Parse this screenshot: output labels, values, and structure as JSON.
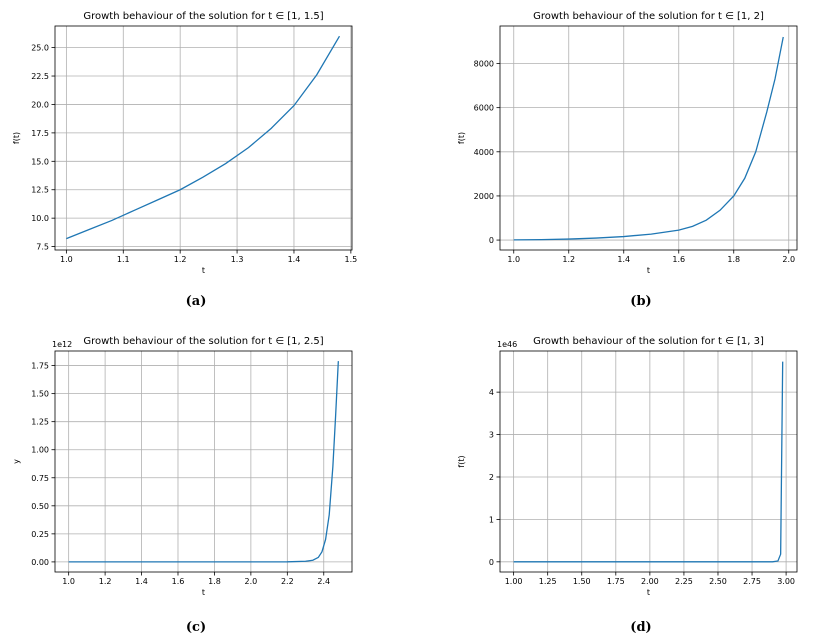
{
  "chart_data": [
    {
      "type": "line",
      "title": "Growth behaviour of the solution for t ∈ [1, 1.5]",
      "xlabel": "t",
      "ylabel": "f(t)",
      "offset_text": "",
      "caption": "(a)",
      "xlim": [
        0.98,
        1.502
      ],
      "ylim": [
        7.2,
        26.9
      ],
      "xticks": [
        1.0,
        1.1,
        1.2,
        1.3,
        1.4,
        1.5
      ],
      "xtick_labels": [
        "1.0",
        "1.1",
        "1.2",
        "1.3",
        "1.4",
        "1.5"
      ],
      "yticks": [
        7.5,
        10.0,
        12.5,
        15.0,
        17.5,
        20.0,
        22.5,
        25.0
      ],
      "ytick_labels": [
        "7.5",
        "10.0",
        "12.5",
        "15.0",
        "17.5",
        "20.0",
        "22.5",
        "25.0"
      ],
      "grid": true,
      "series": [
        {
          "x": [
            1.0,
            1.04,
            1.08,
            1.12,
            1.16,
            1.2,
            1.24,
            1.28,
            1.32,
            1.36,
            1.4,
            1.44,
            1.48
          ],
          "y": [
            8.2,
            9.0,
            9.8,
            10.7,
            11.6,
            12.5,
            13.6,
            14.8,
            16.2,
            17.9,
            19.9,
            22.6,
            26.0
          ]
        }
      ]
    },
    {
      "type": "line",
      "title": "Growth behaviour of the solution for t ∈ [1, 2]",
      "xlabel": "t",
      "ylabel": "f(t)",
      "offset_text": "",
      "caption": "(b)",
      "xlim": [
        0.95,
        2.03
      ],
      "ylim": [
        -450,
        9700
      ],
      "xticks": [
        1.0,
        1.2,
        1.4,
        1.6,
        1.8,
        2.0
      ],
      "xtick_labels": [
        "1.0",
        "1.2",
        "1.4",
        "1.6",
        "1.8",
        "2.0"
      ],
      "yticks": [
        0,
        2000,
        4000,
        6000,
        8000
      ],
      "ytick_labels": [
        "0",
        "2000",
        "4000",
        "6000",
        "8000"
      ],
      "grid": true,
      "series": [
        {
          "x": [
            1.0,
            1.1,
            1.2,
            1.3,
            1.4,
            1.5,
            1.6,
            1.65,
            1.7,
            1.75,
            1.8,
            1.84,
            1.88,
            1.92,
            1.95,
            1.98
          ],
          "y": [
            8,
            20,
            45,
            90,
            160,
            270,
            450,
            620,
            900,
            1350,
            2000,
            2800,
            4000,
            5800,
            7300,
            9200
          ]
        }
      ]
    },
    {
      "type": "line",
      "title": "Growth behaviour of the solution for t ∈ [1, 2.5]",
      "xlabel": "t",
      "ylabel": "y",
      "offset_text": "1e12",
      "caption": "(c)",
      "xlim": [
        0.925,
        2.555
      ],
      "ylim": [
        -0.09,
        1.88
      ],
      "xticks": [
        1.0,
        1.2,
        1.4,
        1.6,
        1.8,
        2.0,
        2.2,
        2.4
      ],
      "xtick_labels": [
        "1.0",
        "1.2",
        "1.4",
        "1.6",
        "1.8",
        "2.0",
        "2.2",
        "2.4"
      ],
      "yticks": [
        0.0,
        0.25,
        0.5,
        0.75,
        1.0,
        1.25,
        1.5,
        1.75
      ],
      "ytick_labels": [
        "0.00",
        "0.25",
        "0.50",
        "0.75",
        "1.00",
        "1.25",
        "1.50",
        "1.75"
      ],
      "grid": true,
      "series": [
        {
          "x": [
            1.0,
            1.5,
            2.0,
            2.2,
            2.3,
            2.34,
            2.37,
            2.39,
            2.41,
            2.43,
            2.45,
            2.465,
            2.48
          ],
          "y": [
            0.0,
            0.0,
            0.0,
            0.001,
            0.006,
            0.015,
            0.04,
            0.09,
            0.2,
            0.42,
            0.85,
            1.3,
            1.79
          ]
        }
      ]
    },
    {
      "type": "line",
      "title": "Growth behaviour of the solution for t ∈ [1, 3]",
      "xlabel": "t",
      "ylabel": "f(t)",
      "offset_text": "1e46",
      "caption": "(d)",
      "xlim": [
        0.9,
        3.08
      ],
      "ylim": [
        -0.24,
        4.97
      ],
      "xticks": [
        1.0,
        1.25,
        1.5,
        1.75,
        2.0,
        2.25,
        2.5,
        2.75,
        3.0
      ],
      "xtick_labels": [
        "1.00",
        "1.25",
        "1.50",
        "1.75",
        "2.00",
        "2.25",
        "2.50",
        "2.75",
        "3.00"
      ],
      "yticks": [
        0,
        1,
        2,
        3,
        4
      ],
      "ytick_labels": [
        "0",
        "1",
        "2",
        "3",
        "4"
      ],
      "grid": true,
      "series": [
        {
          "x": [
            1.0,
            2.0,
            2.9,
            2.94,
            2.96,
            2.975
          ],
          "y": [
            0.0,
            0.0,
            0.0,
            0.02,
            0.18,
            4.72
          ]
        }
      ]
    }
  ]
}
